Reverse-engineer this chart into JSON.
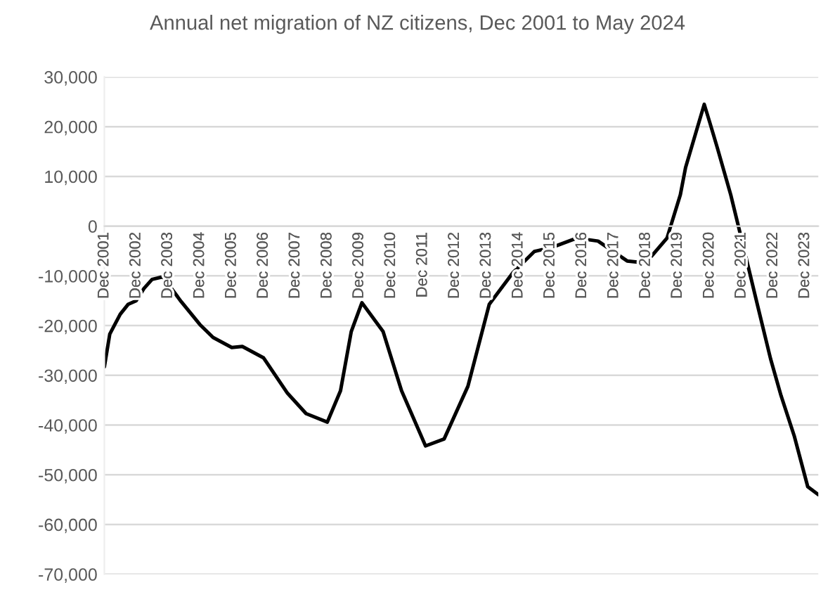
{
  "chart_data": {
    "type": "line",
    "title": "Annual net migration of NZ citizens, Dec 2001 to May 2024",
    "x": [
      "2001-12",
      "2002-02",
      "2002-06",
      "2002-09",
      "2002-12",
      "2003-03",
      "2003-06",
      "2003-10",
      "2003-12",
      "2004-05",
      "2004-12",
      "2005-05",
      "2005-12",
      "2006-04",
      "2006-12",
      "2007-09",
      "2008-04",
      "2008-12",
      "2009-05",
      "2009-09",
      "2010-01",
      "2010-09",
      "2011-04",
      "2012-01",
      "2012-08",
      "2013-05",
      "2014-01",
      "2014-10",
      "2015-06",
      "2016-01",
      "2016-10",
      "2017-06",
      "2018-05",
      "2018-12",
      "2019-08",
      "2020-01",
      "2020-03",
      "2020-10",
      "2020-12",
      "2021-03",
      "2021-08",
      "2022-01",
      "2022-06",
      "2022-11",
      "2023-03",
      "2023-08",
      "2024-01",
      "2024-05"
    ],
    "series": [
      {
        "color": "#000000",
        "values": [
          -28300,
          -21700,
          -17700,
          -15700,
          -15000,
          -12500,
          -10700,
          -10200,
          -11600,
          -15200,
          -19800,
          -22400,
          -24400,
          -24200,
          -26500,
          -33600,
          -37700,
          -39400,
          -33100,
          -21200,
          -15400,
          -21200,
          -33100,
          -44200,
          -42800,
          -32200,
          -15700,
          -9300,
          -5100,
          -4200,
          -2400,
          -3000,
          -7000,
          -7400,
          -2400,
          6300,
          11800,
          24500,
          21000,
          15700,
          6300,
          -4700,
          -15700,
          -26700,
          -34100,
          -42300,
          -52400,
          -54000
        ]
      }
    ],
    "xlim": [
      "2001-12",
      "2024-05"
    ],
    "xticks": [
      {
        "value": "2001-12",
        "label": "Dec 2001"
      },
      {
        "value": "2002-12",
        "label": "Dec 2002"
      },
      {
        "value": "2003-12",
        "label": "Dec 2003"
      },
      {
        "value": "2004-12",
        "label": "Dec 2004"
      },
      {
        "value": "2005-12",
        "label": "Dec 2005"
      },
      {
        "value": "2006-12",
        "label": "Dec 2006"
      },
      {
        "value": "2007-12",
        "label": "Dec 2007"
      },
      {
        "value": "2008-12",
        "label": "Dec 2008"
      },
      {
        "value": "2009-12",
        "label": "Dec 2009"
      },
      {
        "value": "2010-12",
        "label": "Dec 2010"
      },
      {
        "value": "2011-12",
        "label": "Dec 2011"
      },
      {
        "value": "2012-12",
        "label": "Dec 2012"
      },
      {
        "value": "2013-12",
        "label": "Dec 2013"
      },
      {
        "value": "2014-12",
        "label": "Dec 2014"
      },
      {
        "value": "2015-12",
        "label": "Dec 2015"
      },
      {
        "value": "2016-12",
        "label": "Dec 2016"
      },
      {
        "value": "2017-12",
        "label": "Dec 2017"
      },
      {
        "value": "2018-12",
        "label": "Dec 2018"
      },
      {
        "value": "2019-12",
        "label": "Dec 2019"
      },
      {
        "value": "2020-12",
        "label": "Dec 2020"
      },
      {
        "value": "2021-12",
        "label": "Dec 2021"
      },
      {
        "value": "2022-12",
        "label": "Dec 2022"
      },
      {
        "value": "2023-12",
        "label": "Dec 2023"
      }
    ],
    "ylim": [
      -70000,
      30000
    ],
    "yticks": [
      {
        "value": -70000,
        "label": "-70,000"
      },
      {
        "value": -60000,
        "label": "-60,000"
      },
      {
        "value": -50000,
        "label": "-50,000"
      },
      {
        "value": -40000,
        "label": "-40,000"
      },
      {
        "value": -30000,
        "label": "-30,000"
      },
      {
        "value": -20000,
        "label": "-20,000"
      },
      {
        "value": -10000,
        "label": "-10,000"
      },
      {
        "value": 0,
        "label": "0"
      },
      {
        "value": 10000,
        "label": "10,000"
      },
      {
        "value": 20000,
        "label": "20,000"
      },
      {
        "value": 30000,
        "label": "30,000"
      }
    ],
    "grid": "y",
    "line_style": "solid",
    "marker": "none"
  }
}
